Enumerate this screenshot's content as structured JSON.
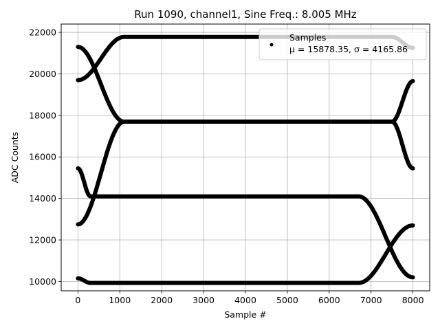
{
  "chart_data": {
    "type": "scatter",
    "title": "Run 1090, channel1, Sine Freq.: 8.005 MHz",
    "xlabel": "Sample #",
    "ylabel": "ADC Counts",
    "xlim": [
      -400,
      8400
    ],
    "ylim": [
      9550,
      22400
    ],
    "xticks": [
      0,
      1000,
      2000,
      3000,
      4000,
      5000,
      6000,
      7000,
      8000
    ],
    "yticks": [
      10000,
      12000,
      14000,
      16000,
      18000,
      20000,
      22000
    ],
    "xtick_labels": [
      "0",
      "1000",
      "2000",
      "3000",
      "4000",
      "5000",
      "6000",
      "7000",
      "8000"
    ],
    "ytick_labels": [
      "10000",
      "12000",
      "14000",
      "16000",
      "18000",
      "20000",
      "22000"
    ],
    "grid": true,
    "legend_position": "top-right",
    "marker_color": "#000000",
    "series": [
      {
        "name": "Samples",
        "stats_label": "μ = 15878.35, σ = 4165.86",
        "mean": 15878.35,
        "sigma": 4165.86,
        "envelope_min": 9930,
        "envelope_max": 21780,
        "x_range": [
          0,
          8000
        ],
        "traces": [
          {
            "x": [
              0,
              1100,
              2700,
              4300,
              5900,
              7500,
              8000
            ],
            "y": [
              19700,
              21780,
              21780,
              21780,
              21780,
              21780,
              21250
            ]
          },
          {
            "x": [
              0,
              1100,
              2700,
              4300,
              5900,
              7500,
              8000
            ],
            "y": [
              21300,
              17700,
              17700,
              17700,
              17700,
              17700,
              15450
            ]
          },
          {
            "x": [
              0,
              300,
              1900,
              3500,
              5100,
              6700,
              8000
            ],
            "y": [
              15450,
              14100,
              14100,
              14100,
              14100,
              14100,
              10200
            ]
          },
          {
            "x": [
              0,
              300,
              1900,
              3500,
              5100,
              6700,
              8000
            ],
            "y": [
              10150,
              9930,
              9930,
              9930,
              9930,
              9930,
              12700
            ]
          },
          {
            "x": [
              0,
              1100,
              2700,
              4300,
              5900,
              7500,
              8000
            ],
            "y": [
              12750,
              17700,
              17700,
              17700,
              17700,
              17700,
              19650
            ]
          }
        ]
      }
    ]
  }
}
